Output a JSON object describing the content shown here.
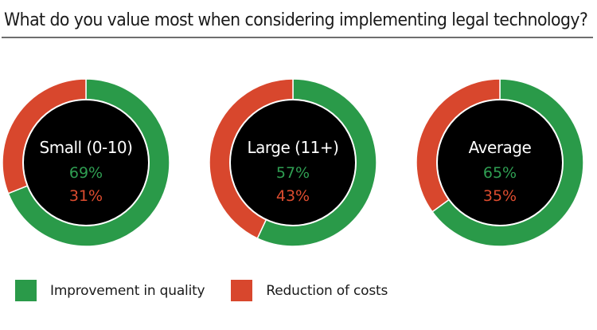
{
  "chart_data": {
    "type": "pie",
    "variant": "donut",
    "title": "What do you value most when considering implementing legal technology?",
    "series_names": [
      "Improvement in quality",
      "Reduction of costs"
    ],
    "colors": {
      "quality": "#2a9a49",
      "costs": "#d8472d",
      "center": "#000000",
      "center_label": "#ffffff",
      "quality_text": "#2f9e52",
      "costs_text": "#dd4c2f"
    },
    "charts": [
      {
        "label": "Small (0-10)",
        "quality": 69,
        "costs": 31,
        "quality_text": "69%",
        "costs_text": "31%"
      },
      {
        "label": "Large (11+)",
        "quality": 57,
        "costs": 43,
        "quality_text": "57%",
        "costs_text": "43%"
      },
      {
        "label": "Average",
        "quality": 65,
        "costs": 35,
        "quality_text": "65%",
        "costs_text": "35%"
      }
    ],
    "legend": [
      {
        "label": "Improvement in quality",
        "color": "#2a9a49"
      },
      {
        "label": "Reduction of costs",
        "color": "#d8472d"
      }
    ],
    "legend_position": "bottom-left"
  }
}
